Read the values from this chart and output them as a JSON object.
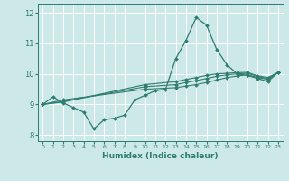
{
  "xlabel": "Humidex (Indice chaleur)",
  "background_color": "#cce8e8",
  "grid_color": "#ffffff",
  "line_color": "#2e7d6e",
  "xlim": [
    -0.5,
    23.5
  ],
  "ylim": [
    7.8,
    12.3
  ],
  "xticks": [
    0,
    1,
    2,
    3,
    4,
    5,
    6,
    7,
    8,
    9,
    10,
    11,
    12,
    13,
    14,
    15,
    16,
    17,
    18,
    19,
    20,
    21,
    22,
    23
  ],
  "yticks": [
    8,
    9,
    10,
    11,
    12
  ],
  "line1_x": [
    0,
    1,
    2,
    3,
    4,
    5,
    6,
    7,
    8,
    9,
    10,
    11,
    12,
    13,
    14,
    15,
    16,
    17,
    18,
    19,
    20,
    21,
    22,
    23
  ],
  "line1_y": [
    9.0,
    9.25,
    9.05,
    8.9,
    8.75,
    8.2,
    8.5,
    8.55,
    8.65,
    9.15,
    9.3,
    9.45,
    9.5,
    10.5,
    11.1,
    11.85,
    11.6,
    10.8,
    10.3,
    10.0,
    9.95,
    9.85,
    9.75,
    10.05
  ],
  "line2_x": [
    0,
    2,
    10,
    13,
    14,
    15,
    16,
    17,
    18,
    19,
    20,
    21,
    22,
    23
  ],
  "line2_y": [
    9.0,
    9.15,
    9.5,
    9.55,
    9.6,
    9.65,
    9.72,
    9.8,
    9.88,
    9.93,
    9.97,
    9.88,
    9.82,
    10.05
  ],
  "line3_x": [
    0,
    2,
    10,
    13,
    14,
    15,
    16,
    17,
    18,
    19,
    20,
    21,
    22,
    23
  ],
  "line3_y": [
    9.0,
    9.1,
    9.58,
    9.65,
    9.72,
    9.78,
    9.85,
    9.92,
    9.97,
    10.0,
    10.02,
    9.91,
    9.85,
    10.05
  ],
  "line4_x": [
    0,
    2,
    10,
    13,
    14,
    15,
    16,
    17,
    18,
    19,
    20,
    21,
    22,
    23
  ],
  "line4_y": [
    9.0,
    9.08,
    9.65,
    9.75,
    9.82,
    9.88,
    9.95,
    10.0,
    10.02,
    10.04,
    10.05,
    9.94,
    9.88,
    10.05
  ]
}
